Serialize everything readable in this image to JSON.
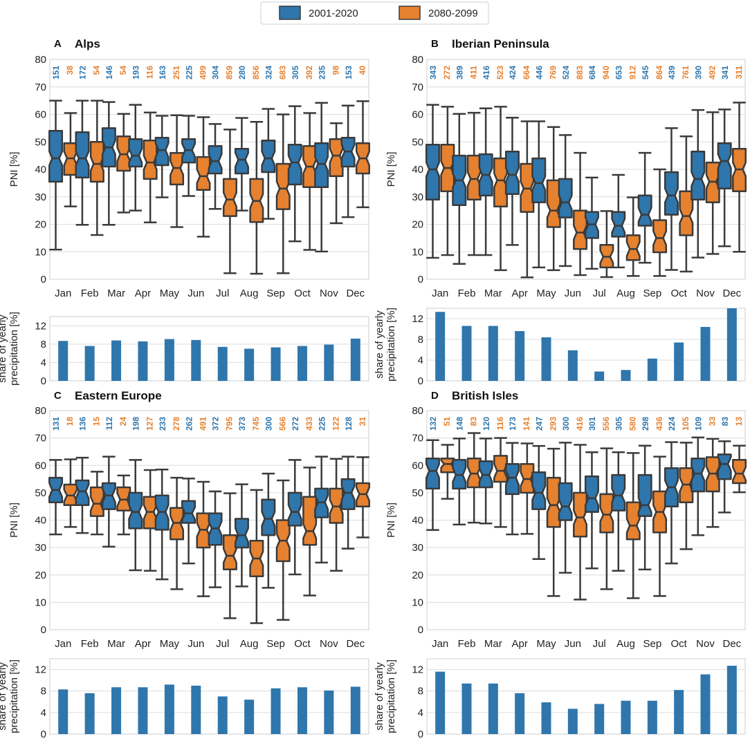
{
  "chart_data": {
    "type": "boxplot+bar",
    "legend": {
      "placement": "top-center",
      "entries": [
        {
          "label": "2001-2020",
          "color": "#2f76ac"
        },
        {
          "label": "2080-2099",
          "color": "#e6812f"
        }
      ]
    },
    "months": [
      "Jan",
      "Feb",
      "Mar",
      "Apr",
      "May",
      "Jun",
      "Jul",
      "Aug",
      "Sep",
      "Oct",
      "Nov",
      "Dec"
    ],
    "box_ylabel": "PNI [%]",
    "box_ylim": [
      0,
      80
    ],
    "box_yticks": [
      "0",
      "10",
      "20",
      "30",
      "40",
      "50",
      "60",
      "70",
      "80"
    ],
    "bar_ylabel_line1": "share of yearly",
    "bar_ylabel_line2": "precipitation [%]",
    "bar_ylim": [
      0,
      14
    ],
    "bar_yticks": [
      "0",
      "4",
      "8",
      "12"
    ],
    "panels": [
      {
        "letter": "A",
        "title": "Alps",
        "counts_hist": [
          "151",
          "172",
          "146",
          "193",
          "163",
          "225",
          "304",
          "280",
          "324",
          "305",
          "235",
          "153"
        ],
        "counts_fut": [
          "38",
          "54",
          "54",
          "116",
          "251",
          "499",
          "859",
          "856",
          "683",
          "392",
          "98",
          "40"
        ],
        "hist": [
          [
            10.8,
            35.5,
            44,
            54,
            65
          ],
          [
            19.8,
            37,
            44,
            53.5,
            65
          ],
          [
            19.8,
            41,
            48,
            55,
            64.5
          ],
          [
            25,
            41,
            45,
            51,
            63.5
          ],
          [
            29.8,
            41.5,
            47,
            51.5,
            59.5
          ],
          [
            30.3,
            42.5,
            47,
            51,
            59.5
          ],
          [
            25.6,
            38.5,
            43,
            48.5,
            56.5
          ],
          [
            25,
            38.5,
            43.5,
            47.5,
            58.7
          ],
          [
            22,
            39,
            44,
            50.5,
            62
          ],
          [
            13.8,
            34.5,
            42.5,
            49,
            63
          ],
          [
            10.1,
            33.5,
            42,
            49.5,
            64.2
          ],
          [
            22.6,
            41,
            46.5,
            51.5,
            63.2
          ]
        ],
        "fut": [
          [
            26.5,
            38,
            44,
            49.5,
            60.5
          ],
          [
            16.1,
            35.5,
            42,
            50,
            65
          ],
          [
            24.3,
            39.5,
            45.5,
            52,
            60.2
          ],
          [
            20.7,
            36.5,
            42.5,
            50.5,
            60.7
          ],
          [
            19,
            34.5,
            40.5,
            46,
            59.7
          ],
          [
            15.5,
            32.5,
            37.5,
            44.5,
            59
          ],
          [
            2.2,
            23,
            29,
            36.5,
            54.5
          ],
          [
            2,
            20.8,
            28.5,
            36.5,
            57.3
          ],
          [
            2.2,
            25.5,
            33,
            42,
            60
          ],
          [
            10.7,
            33.5,
            41,
            48.5,
            60.5
          ],
          [
            20.4,
            37.5,
            45,
            51,
            56.8
          ],
          [
            26.2,
            38.5,
            44,
            49.5,
            64.8
          ]
        ],
        "bars": [
          8.7,
          7.6,
          8.8,
          8.6,
          9.1,
          8.9,
          7.4,
          7.0,
          7.3,
          7.6,
          7.9,
          9.2
        ]
      },
      {
        "letter": "B",
        "title": "Iberian Peninsula",
        "counts_hist": [
          "343",
          "389",
          "416",
          "424",
          "446",
          "524",
          "684",
          "653",
          "545",
          "439",
          "390",
          "341"
        ],
        "counts_fut": [
          "272",
          "411",
          "523",
          "664",
          "769",
          "883",
          "940",
          "912",
          "864",
          "761",
          "492",
          "311"
        ],
        "hist": [
          [
            7.8,
            29,
            40,
            49,
            63.5
          ],
          [
            5.6,
            27,
            36,
            45,
            60.2
          ],
          [
            8.8,
            30.5,
            38,
            45.5,
            62.2
          ],
          [
            12.5,
            31,
            38,
            46.5,
            58.8
          ],
          [
            4.3,
            28,
            35,
            44,
            57.5
          ],
          [
            4.8,
            22.5,
            28,
            36.5,
            52.5
          ],
          [
            3.8,
            15,
            20,
            24.5,
            37
          ],
          [
            4.3,
            15.5,
            19.5,
            24.5,
            38
          ],
          [
            6,
            19.5,
            23.5,
            30.5,
            46
          ],
          [
            3.4,
            23.5,
            30.5,
            39,
            55
          ],
          [
            7.9,
            29,
            36.5,
            46.5,
            61.6
          ],
          [
            12,
            33,
            43,
            49.5,
            61.8
          ]
        ],
        "fut": [
          [
            8.8,
            32,
            40.5,
            49,
            62.8
          ],
          [
            8.8,
            29,
            36.5,
            45,
            60.6
          ],
          [
            3.3,
            26.5,
            36,
            44,
            62.8
          ],
          [
            0.7,
            24.5,
            33,
            42,
            57.5
          ],
          [
            3.3,
            19,
            25,
            36,
            55.4
          ],
          [
            1.5,
            11,
            17,
            25,
            46
          ],
          [
            0.8,
            4.3,
            8.2,
            12.5,
            24.8
          ],
          [
            1.2,
            7,
            11,
            16,
            29.8
          ],
          [
            1.2,
            9.8,
            15,
            21.5,
            40
          ],
          [
            2.8,
            16,
            23,
            32,
            52
          ],
          [
            9.2,
            28,
            35.5,
            42.5,
            60.8
          ],
          [
            10,
            32,
            40,
            47.5,
            64.3
          ]
        ],
        "bars": [
          13.3,
          10.6,
          10.6,
          9.6,
          8.4,
          5.9,
          1.8,
          2.1,
          4.3,
          7.4,
          10.4,
          14.0
        ]
      },
      {
        "letter": "C",
        "title": "Eastern Europe",
        "counts_hist": [
          "131",
          "136",
          "112",
          "198",
          "233",
          "262",
          "372",
          "373",
          "300",
          "272",
          "225",
          "128"
        ],
        "counts_fut": [
          "18",
          "15",
          "24",
          "127",
          "278",
          "491",
          "795",
          "745",
          "566",
          "433",
          "122",
          "31"
        ],
        "hist": [
          [
            34.8,
            46.5,
            51,
            55.5,
            62
          ],
          [
            35.3,
            45.5,
            50.5,
            54.5,
            62.8
          ],
          [
            30.3,
            44,
            49,
            53.5,
            63.2
          ],
          [
            21.7,
            37,
            43,
            50,
            62
          ],
          [
            18.4,
            36.5,
            43,
            49,
            58.5
          ],
          [
            24.2,
            39,
            42.5,
            47,
            55.2
          ],
          [
            15.5,
            31,
            37,
            42.5,
            50.5
          ],
          [
            15.8,
            30,
            34.5,
            40.5,
            53.1
          ],
          [
            15.3,
            34.5,
            40.5,
            47.5,
            57
          ],
          [
            20.2,
            38,
            43,
            50,
            62
          ],
          [
            24.5,
            41,
            46.5,
            51.5,
            63.2
          ],
          [
            29.6,
            44,
            50,
            55,
            63.2
          ]
        ],
        "fut": [
          [
            37.5,
            45.5,
            49,
            53,
            62.2
          ],
          [
            34.8,
            41.5,
            46,
            52,
            57.7
          ],
          [
            34.8,
            43.5,
            47.5,
            52,
            56.3
          ],
          [
            21.5,
            37,
            43,
            48.5,
            58.3
          ],
          [
            14.8,
            33,
            39,
            44.5,
            55.5
          ],
          [
            12.2,
            30,
            36.5,
            42.5,
            54
          ],
          [
            4.2,
            22,
            27,
            34.5,
            49.8
          ],
          [
            2.4,
            19.5,
            26,
            32.5,
            51
          ],
          [
            3.6,
            25,
            32.5,
            40,
            54.5
          ],
          [
            12.5,
            31,
            36,
            48.5,
            59.2
          ],
          [
            21.5,
            39,
            45,
            51.5,
            62.4
          ],
          [
            33.7,
            45,
            49.5,
            53.5,
            63
          ]
        ],
        "bars": [
          8.3,
          7.6,
          8.7,
          8.7,
          9.2,
          9.0,
          7.0,
          6.4,
          8.5,
          8.7,
          8.1,
          8.8
        ]
      },
      {
        "letter": "D",
        "title": "British Isles",
        "counts_hist": [
          "132",
          "148",
          "120",
          "173",
          "247",
          "300",
          "301",
          "305",
          "298",
          "224",
          "109",
          "83"
        ],
        "counts_fut": [
          "51",
          "83",
          "116",
          "141",
          "293",
          "416",
          "556",
          "580",
          "436",
          "105",
          "33",
          "13"
        ],
        "hist": [
          [
            36.4,
            51.5,
            58,
            62.5,
            69.2
          ],
          [
            38.4,
            51.5,
            56.5,
            62,
            69.8
          ],
          [
            38.8,
            52,
            56.5,
            61.5,
            69.8
          ],
          [
            34.8,
            49.5,
            55.5,
            60.5,
            68.2
          ],
          [
            25.8,
            44,
            50,
            57.5,
            67.1
          ],
          [
            20.8,
            40,
            45,
            53.5,
            68.3
          ],
          [
            22.4,
            43,
            48,
            56,
            64.8
          ],
          [
            21.5,
            43.5,
            49,
            56.5,
            64.8
          ],
          [
            22,
            41.5,
            45.5,
            56.5,
            67.2
          ],
          [
            24.2,
            45,
            52,
            59,
            68.5
          ],
          [
            34.5,
            50.5,
            57,
            62.5,
            70.2
          ],
          [
            42.8,
            55,
            60.5,
            64,
            68.8
          ]
        ],
        "fut": [
          [
            47.8,
            57.5,
            60.5,
            62.5,
            67.5
          ],
          [
            39.1,
            52,
            57,
            62.5,
            71.8
          ],
          [
            37.5,
            54,
            58,
            63.5,
            70
          ],
          [
            35,
            50,
            55,
            60.5,
            68
          ],
          [
            12.3,
            37.5,
            45.5,
            55.5,
            66.1
          ],
          [
            11,
            34,
            41,
            50,
            67.5
          ],
          [
            14.8,
            35.5,
            42,
            49.5,
            66.2
          ],
          [
            11.5,
            33,
            38,
            46.5,
            64.5
          ],
          [
            12.3,
            35.5,
            43,
            50.5,
            63.2
          ],
          [
            29.4,
            46.5,
            53,
            59,
            68.3
          ],
          [
            37.5,
            50.5,
            57,
            63,
            69.7
          ],
          [
            50.2,
            53.5,
            57,
            62,
            67.2
          ]
        ],
        "bars": [
          11.6,
          9.4,
          9.4,
          7.6,
          5.9,
          4.7,
          5.6,
          6.2,
          6.2,
          8.2,
          11.1,
          12.7
        ]
      }
    ]
  }
}
